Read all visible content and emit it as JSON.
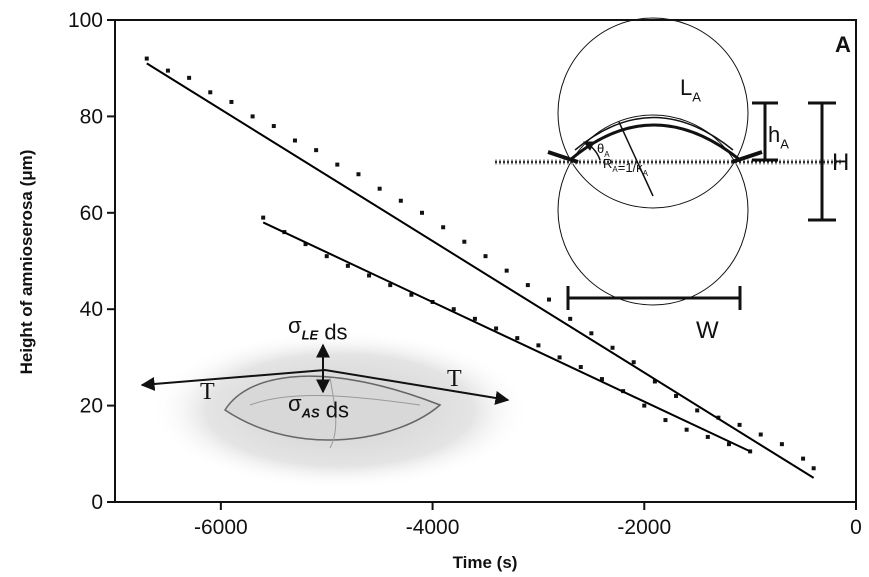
{
  "chart_data": {
    "type": "scatter",
    "x_label": "Time (s)",
    "y_label": "Height of amnioserosa (μm)",
    "xlim": [
      -7000,
      0
    ],
    "xticks": [
      -6000,
      -4000,
      -2000,
      0
    ],
    "ylim": [
      0,
      100
    ],
    "yticks": [
      0,
      20,
      40,
      60,
      80,
      100
    ],
    "series": [
      {
        "style": "markers",
        "color": "#111111",
        "x": [
          -6700,
          -6500,
          -6300,
          -6100,
          -5900,
          -5700,
          -5500,
          -5300,
          -5100,
          -4900,
          -4700,
          -4500,
          -4300,
          -4100,
          -3900,
          -3700,
          -3500,
          -3300,
          -3100,
          -2900,
          -2700,
          -2500,
          -2300,
          -2100,
          -1900,
          -1700,
          -1500,
          -1300,
          -1100,
          -900,
          -700,
          -500,
          -400
        ],
        "values": [
          92,
          89.5,
          88,
          85,
          83,
          80,
          78,
          75,
          73,
          70,
          68,
          65,
          62.5,
          60,
          57,
          54,
          51,
          48,
          45,
          42,
          38,
          35,
          32,
          29,
          25,
          22,
          19,
          17.5,
          16,
          14,
          12,
          9,
          7
        ]
      },
      {
        "style": "markers",
        "color": "#111111",
        "x": [
          -5600,
          -5400,
          -5200,
          -5000,
          -4800,
          -4600,
          -4400,
          -4200,
          -4000,
          -3800,
          -3600,
          -3400,
          -3200,
          -3000,
          -2800,
          -2600,
          -2400,
          -2200,
          -2000,
          -1800,
          -1600,
          -1400,
          -1200,
          -1000
        ],
        "values": [
          59,
          56,
          53.5,
          51,
          49,
          47,
          45,
          43,
          41.5,
          40,
          38,
          36,
          34,
          32.5,
          30,
          28,
          25.5,
          23,
          20,
          17,
          15,
          13.5,
          12,
          10.5
        ]
      },
      {
        "style": "line",
        "color": "#000000",
        "x": [
          -6700,
          -400
        ],
        "values": [
          91,
          5
        ]
      },
      {
        "style": "line",
        "color": "#000000",
        "x": [
          -5600,
          -1000
        ],
        "values": [
          58,
          10.5
        ]
      }
    ],
    "annotations": [
      [
        "A"
      ],
      [
        "L",
        {
          "sub": "A"
        }
      ],
      [
        "h",
        {
          "sub": "A"
        }
      ],
      [
        "H"
      ],
      [
        "W"
      ],
      [
        "θ",
        {
          "sub": "A"
        }
      ],
      [
        "R",
        {
          "sub": "A"
        },
        "=1/κ",
        {
          "sub": "A"
        }
      ],
      [
        "σ",
        {
          "sub": "LE"
        },
        " ds"
      ],
      [
        "σ",
        {
          "sub": "AS"
        },
        " ds"
      ],
      [
        "T"
      ],
      [
        "T"
      ]
    ]
  }
}
